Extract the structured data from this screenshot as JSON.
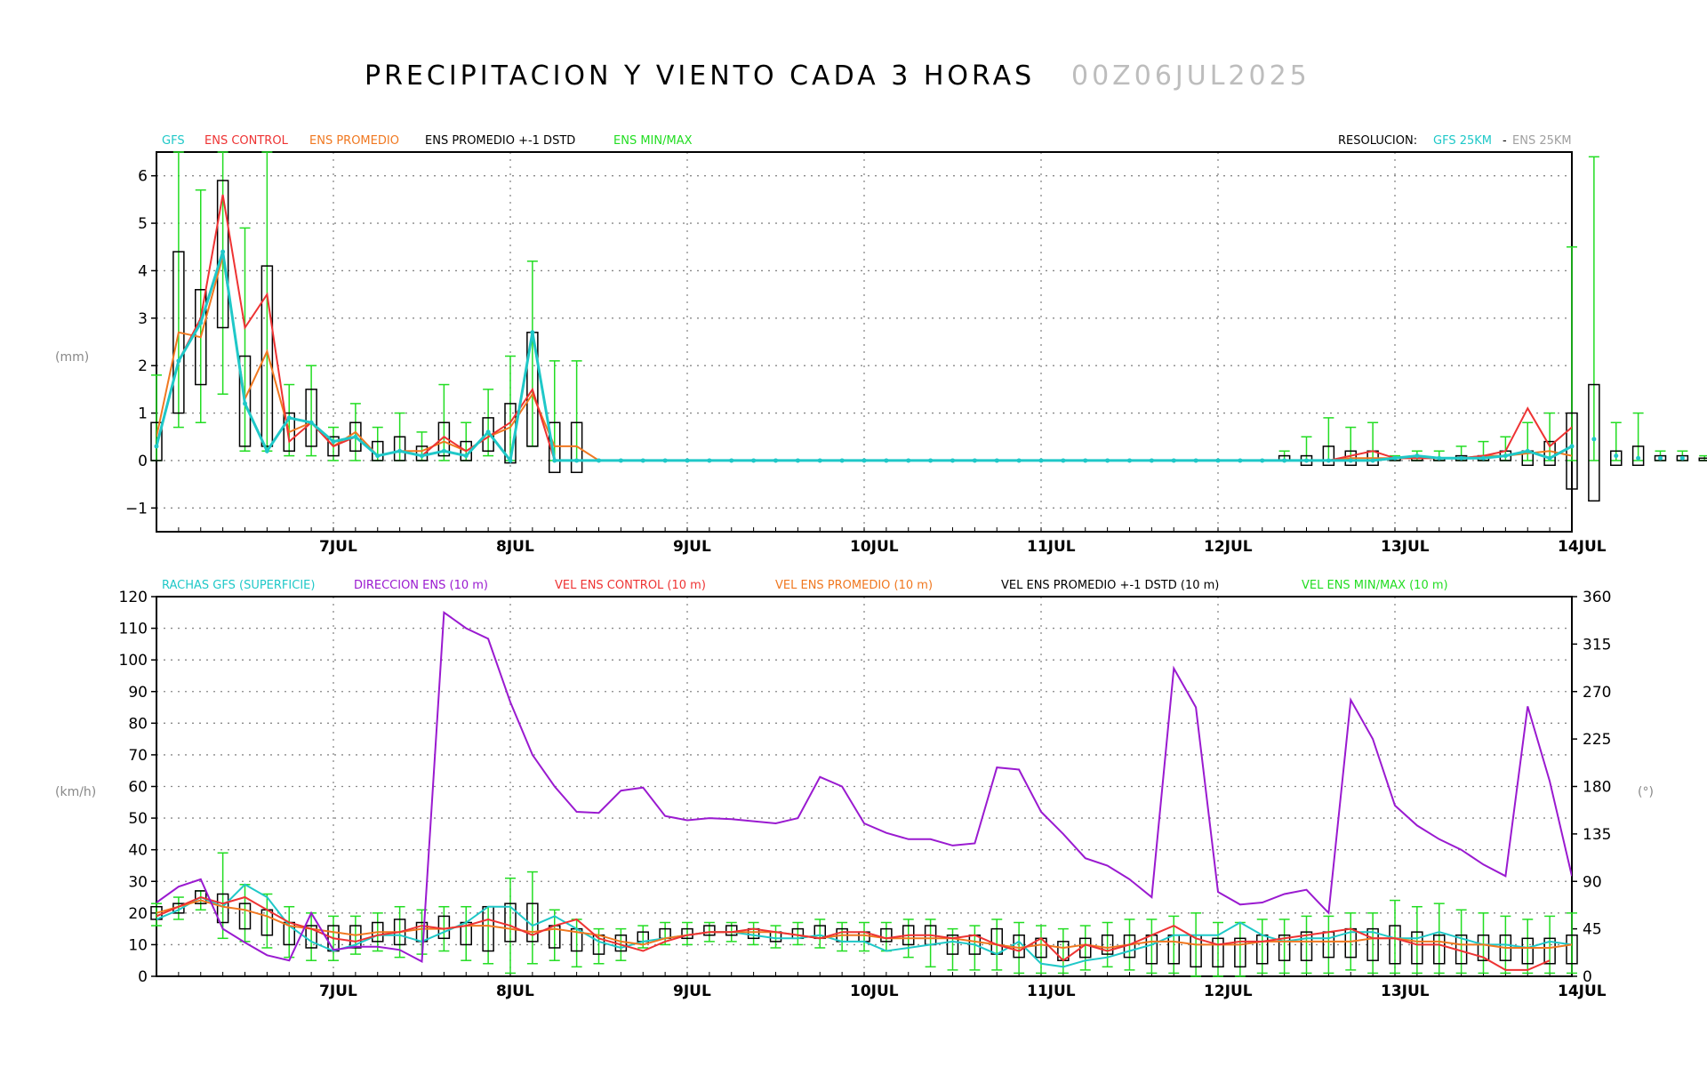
{
  "title": "PRECIPITACION Y VIENTO CADA 3 HORAS",
  "run": "00Z06JUL2025",
  "colors": {
    "gfs": "#1fc8c8",
    "control": "#ee3333",
    "mean": "#f07820",
    "box": "#000000",
    "minmax": "#22dd22",
    "dir": "#9a1ad0",
    "gray": "#a0a0a0"
  },
  "top_legend": {
    "gfs": "GFS",
    "control": "ENS CONTROL",
    "mean": "ENS PROMEDIO",
    "std": "ENS PROMEDIO +-1 DSTD",
    "minmax": "ENS MIN/MAX",
    "res_label": "RESOLUCION:",
    "res_gfs": "GFS 25KM",
    "res_sep": "-",
    "res_ens": "ENS 25KM"
  },
  "bottom_legend": {
    "gust": "RACHAS GFS (SUPERFICIE)",
    "dir": "DIRECCION ENS (10 m)",
    "control": "VEL ENS CONTROL (10 m)",
    "mean": "VEL ENS PROMEDIO (10 m)",
    "std": "VEL ENS PROMEDIO +-1 DSTD (10 m)",
    "minmax": "VEL ENS MIN/MAX (10 m)"
  },
  "chart_data": [
    {
      "type": "line",
      "panel": "precipitation",
      "ylabel": "(mm)",
      "ylim": [
        -1.5,
        6.5
      ],
      "yticks": [
        -1,
        0,
        1,
        2,
        3,
        4,
        5,
        6
      ],
      "ytick_labels": [
        "−1",
        "0",
        "1",
        "2",
        "3",
        "4",
        "5",
        "6"
      ],
      "xlim_days": [
        6.0,
        14.0
      ],
      "x_ticks": [
        7,
        8,
        9,
        10,
        11,
        12,
        13,
        14
      ],
      "x_tick_labels": [
        "7JUL",
        "8JUL",
        "9JUL",
        "10JUL",
        "11JUL",
        "12JUL",
        "13JUL",
        "14JUL"
      ],
      "x_step_hours": 3,
      "grid": true,
      "gfs": [
        0.3,
        2.1,
        2.9,
        4.4,
        1.2,
        0.2,
        0.9,
        0.8,
        0.4,
        0.5,
        0.1,
        0.2,
        0.1,
        0.2,
        0.1,
        0.6,
        0.0,
        2.7,
        0.0,
        0.0,
        0,
        0,
        0,
        0,
        0,
        0,
        0,
        0,
        0,
        0,
        0,
        0,
        0,
        0,
        0,
        0,
        0,
        0,
        0,
        0,
        0,
        0,
        0,
        0,
        0,
        0,
        0,
        0,
        0,
        0,
        0,
        0,
        0,
        0,
        0,
        0,
        0.05,
        0.1,
        0.05,
        0.05,
        0.05,
        0.1,
        0.2,
        0.05,
        0.3,
        0.45,
        0.1,
        0.05,
        0.05,
        0.05
      ],
      "control": [
        0.3,
        2.1,
        3.0,
        5.6,
        2.8,
        3.5,
        0.4,
        0.8,
        0.3,
        0.5,
        0.1,
        0.2,
        0.1,
        0.5,
        0.2,
        0.5,
        0.8,
        1.5,
        0.0,
        0.0,
        0,
        0,
        0,
        0,
        0,
        0,
        0,
        0,
        0,
        0,
        0,
        0,
        0,
        0,
        0,
        0,
        0,
        0,
        0,
        0,
        0,
        0,
        0,
        0,
        0,
        0,
        0,
        0,
        0,
        0,
        0,
        0,
        0,
        0,
        0.1,
        0.2,
        0.05,
        0.05,
        0.05,
        0.05,
        0.1,
        0.2,
        1.1,
        0.3,
        0.7,
        0.2,
        0.05,
        0.3,
        0.4,
        0.05,
        0.05,
        0.0,
        0.0
      ],
      "mean": [
        0.5,
        2.7,
        2.6,
        4.3,
        1.3,
        2.3,
        0.6,
        0.8,
        0.3,
        0.6,
        0.1,
        0.2,
        0.2,
        0.4,
        0.2,
        0.5,
        0.7,
        1.4,
        0.3,
        0.3,
        0,
        0,
        0,
        0,
        0,
        0,
        0,
        0,
        0,
        0,
        0,
        0,
        0,
        0,
        0,
        0,
        0,
        0,
        0,
        0,
        0,
        0,
        0,
        0,
        0,
        0,
        0,
        0,
        0,
        0,
        0,
        0,
        0,
        0,
        0.05,
        0.05,
        0.05,
        0.05,
        0.05,
        0.05,
        0.1,
        0.1,
        0.15,
        0.2,
        0.1,
        0.2,
        0.35,
        0.25,
        0.3,
        0.1,
        0.1,
        0.05,
        0.05
      ],
      "std_boxes": [
        [
          0.0,
          0.8
        ],
        [
          1.0,
          4.4
        ],
        [
          1.6,
          3.6
        ],
        [
          2.8,
          5.9
        ],
        [
          0.3,
          2.2
        ],
        [
          0.3,
          4.1
        ],
        [
          0.2,
          1.0
        ],
        [
          0.3,
          1.5
        ],
        [
          0.1,
          0.5
        ],
        [
          0.2,
          0.8
        ],
        [
          0.0,
          0.4
        ],
        [
          0.0,
          0.5
        ],
        [
          0.0,
          0.3
        ],
        [
          0.1,
          0.8
        ],
        [
          0.0,
          0.4
        ],
        [
          0.2,
          0.9
        ],
        [
          -0.05,
          1.2
        ],
        [
          0.3,
          2.7
        ],
        [
          -0.25,
          0.8
        ],
        [
          -0.25,
          0.8
        ]
      ],
      "std_boxes_late": [
        [
          0.0,
          0.1
        ],
        [
          -0.1,
          0.1
        ],
        [
          -0.1,
          0.3
        ],
        [
          -0.1,
          0.2
        ],
        [
          -0.1,
          0.2
        ],
        [
          0.0,
          0.05
        ],
        [
          0.0,
          0.05
        ],
        [
          0.0,
          0.05
        ],
        [
          0.0,
          0.1
        ],
        [
          0.0,
          0.1
        ],
        [
          0.0,
          0.2
        ],
        [
          -0.1,
          0.2
        ],
        [
          -0.1,
          0.4
        ],
        [
          -0.6,
          1.0
        ],
        [
          -0.85,
          1.6
        ],
        [
          -0.1,
          0.2
        ],
        [
          -0.1,
          0.3
        ],
        [
          0.0,
          0.1
        ],
        [
          0.0,
          0.1
        ],
        [
          0.0,
          0.05
        ],
        [
          0.0,
          0.1
        ]
      ],
      "minmax_early": [
        [
          0.0,
          1.8
        ],
        [
          0.7,
          6.5
        ],
        [
          0.8,
          5.7
        ],
        [
          1.4,
          6.5
        ],
        [
          0.2,
          4.9
        ],
        [
          0.2,
          6.5
        ],
        [
          0.1,
          1.6
        ],
        [
          0.1,
          2.0
        ],
        [
          0.0,
          0.7
        ],
        [
          0.0,
          1.2
        ],
        [
          0.0,
          0.7
        ],
        [
          0.0,
          1.0
        ],
        [
          0.0,
          0.6
        ],
        [
          0.0,
          1.6
        ],
        [
          0.0,
          0.8
        ],
        [
          0.1,
          1.5
        ],
        [
          0.0,
          2.2
        ],
        [
          0.3,
          4.2
        ],
        [
          0.0,
          2.1
        ],
        [
          0.0,
          2.1
        ]
      ],
      "minmax_late": [
        [
          0.0,
          0.2
        ],
        [
          0.0,
          0.5
        ],
        [
          0.0,
          0.9
        ],
        [
          0.0,
          0.7
        ],
        [
          0.0,
          0.8
        ],
        [
          0.0,
          0.1
        ],
        [
          0.0,
          0.2
        ],
        [
          0.0,
          0.2
        ],
        [
          0.0,
          0.3
        ],
        [
          0.0,
          0.4
        ],
        [
          0.0,
          0.5
        ],
        [
          0.0,
          0.8
        ],
        [
          0.0,
          1.0
        ],
        [
          0.0,
          4.5
        ],
        [
          0.0,
          6.4
        ],
        [
          0.0,
          0.8
        ],
        [
          0.0,
          1.0
        ],
        [
          0.0,
          0.2
        ],
        [
          0.0,
          0.2
        ],
        [
          0.0,
          0.1
        ],
        [
          0.0,
          0.1
        ]
      ]
    },
    {
      "type": "line",
      "panel": "wind",
      "ylabel": "(km/h)",
      "ylabel_right": "(°)",
      "ylim": [
        0,
        120
      ],
      "yticks": [
        0,
        10,
        20,
        30,
        40,
        50,
        60,
        70,
        80,
        90,
        100,
        110,
        120
      ],
      "ytick_labels": [
        "0",
        "10",
        "20",
        "30",
        "40",
        "50",
        "60",
        "70",
        "80",
        "90",
        "100",
        "110",
        "120"
      ],
      "y2lim": [
        0,
        360
      ],
      "y2ticks": [
        0,
        45,
        90,
        135,
        180,
        225,
        270,
        315,
        360
      ],
      "y2tick_labels": [
        "0",
        "45",
        "90",
        "135",
        "180",
        "225",
        "270",
        "315",
        "360"
      ],
      "xlim_days": [
        6.0,
        14.0
      ],
      "x_ticks": [
        7,
        8,
        9,
        10,
        11,
        12,
        13,
        14
      ],
      "x_tick_labels": [
        "7JUL",
        "8JUL",
        "9JUL",
        "10JUL",
        "11JUL",
        "12JUL",
        "13JUL",
        "14JUL"
      ],
      "x_step_hours": 3,
      "grid": true,
      "gust": [
        18,
        21,
        25,
        22,
        29,
        25,
        16,
        11,
        8,
        10,
        13,
        13,
        11,
        14,
        17,
        22,
        22,
        16,
        19,
        15,
        11,
        9,
        11,
        12,
        13,
        14,
        14,
        13,
        12,
        12,
        13,
        11,
        11,
        8,
        9,
        10,
        11,
        10,
        7,
        11,
        4,
        3,
        5,
        6,
        8,
        10,
        13,
        13,
        13,
        17,
        13,
        11,
        12,
        12,
        14,
        14,
        12,
        12,
        14,
        12,
        10,
        10,
        9,
        11,
        10,
        8,
        7,
        6,
        4,
        6,
        5,
        3
      ],
      "direction": [
        70,
        85,
        92,
        45,
        32,
        20,
        15,
        60,
        25,
        28,
        28,
        25,
        14,
        345,
        330,
        320,
        260,
        210,
        180,
        156,
        155,
        176,
        179,
        152,
        148,
        150,
        149,
        147,
        145,
        150,
        189,
        180,
        145,
        136,
        130,
        130,
        124,
        126,
        198,
        196,
        156,
        135,
        112,
        105,
        92,
        75,
        292,
        255,
        80,
        68,
        70,
        78,
        82,
        60,
        262,
        225,
        162,
        143,
        130,
        120,
        106,
        95,
        256,
        185,
        95
      ],
      "control": [
        19,
        22,
        25,
        23,
        25,
        21,
        17,
        15,
        12,
        11,
        13,
        14,
        16,
        15,
        16,
        18,
        16,
        13,
        16,
        18,
        12,
        10,
        8,
        11,
        13,
        14,
        14,
        15,
        14,
        13,
        12,
        14,
        14,
        12,
        13,
        13,
        12,
        13,
        10,
        8,
        12,
        5,
        10,
        8,
        10,
        13,
        16,
        12,
        10,
        11,
        11,
        12,
        13,
        14,
        15,
        12,
        12,
        10,
        10,
        8,
        6,
        2,
        2,
        5
      ],
      "mean": [
        20,
        22,
        24,
        22,
        21,
        19,
        16,
        15,
        14,
        13,
        14,
        14,
        15,
        15,
        16,
        16,
        15,
        14,
        15,
        14,
        13,
        11,
        10,
        12,
        13,
        14,
        14,
        14,
        14,
        13,
        12,
        13,
        13,
        12,
        12,
        12,
        12,
        11,
        10,
        9,
        10,
        9,
        10,
        9,
        10,
        11,
        11,
        10,
        10,
        10,
        11,
        11,
        11,
        11,
        11,
        12,
        12,
        11,
        11,
        10,
        10,
        9,
        9,
        9,
        10,
        10
      ],
      "std_boxes": [
        [
          18,
          22
        ],
        [
          20,
          23
        ],
        [
          23,
          27
        ],
        [
          17,
          26
        ],
        [
          15,
          23
        ],
        [
          13,
          21
        ],
        [
          10,
          17
        ],
        [
          9,
          16
        ],
        [
          8,
          16
        ],
        [
          9,
          16
        ],
        [
          11,
          17
        ],
        [
          10,
          18
        ],
        [
          11,
          17
        ],
        [
          12,
          19
        ],
        [
          10,
          17
        ],
        [
          8,
          22
        ],
        [
          11,
          23
        ],
        [
          11,
          23
        ],
        [
          9,
          16
        ],
        [
          8,
          15
        ],
        [
          7,
          13
        ],
        [
          8,
          13
        ],
        [
          11,
          14
        ],
        [
          12,
          15
        ],
        [
          12,
          15
        ],
        [
          13,
          16
        ],
        [
          13,
          16
        ],
        [
          12,
          15
        ],
        [
          11,
          14
        ],
        [
          12,
          15
        ],
        [
          12,
          16
        ],
        [
          11,
          15
        ],
        [
          11,
          14
        ],
        [
          11,
          15
        ],
        [
          10,
          16
        ],
        [
          10,
          16
        ],
        [
          7,
          13
        ],
        [
          7,
          13
        ],
        [
          7,
          15
        ],
        [
          6,
          13
        ],
        [
          6,
          12
        ],
        [
          5,
          11
        ],
        [
          6,
          12
        ],
        [
          7,
          13
        ],
        [
          6,
          13
        ],
        [
          4,
          13
        ],
        [
          4,
          13
        ],
        [
          3,
          13
        ],
        [
          3,
          12
        ],
        [
          3,
          12
        ],
        [
          4,
          13
        ],
        [
          5,
          13
        ],
        [
          5,
          14
        ],
        [
          6,
          14
        ],
        [
          6,
          15
        ],
        [
          5,
          15
        ],
        [
          4,
          16
        ],
        [
          4,
          14
        ],
        [
          4,
          13
        ],
        [
          4,
          13
        ],
        [
          5,
          13
        ],
        [
          5,
          13
        ],
        [
          4,
          12
        ],
        [
          4,
          12
        ],
        [
          4,
          13
        ]
      ],
      "minmax": [
        [
          16,
          23
        ],
        [
          18,
          25
        ],
        [
          21,
          27
        ],
        [
          12,
          39
        ],
        [
          11,
          29
        ],
        [
          9,
          26
        ],
        [
          6,
          22
        ],
        [
          5,
          20
        ],
        [
          5,
          19
        ],
        [
          7,
          19
        ],
        [
          8,
          20
        ],
        [
          6,
          22
        ],
        [
          7,
          21
        ],
        [
          8,
          22
        ],
        [
          5,
          22
        ],
        [
          4,
          22
        ],
        [
          1,
          31
        ],
        [
          4,
          33
        ],
        [
          5,
          21
        ],
        [
          3,
          18
        ],
        [
          4,
          15
        ],
        [
          5,
          15
        ],
        [
          9,
          16
        ],
        [
          10,
          17
        ],
        [
          10,
          17
        ],
        [
          11,
          17
        ],
        [
          11,
          17
        ],
        [
          10,
          17
        ],
        [
          9,
          16
        ],
        [
          10,
          17
        ],
        [
          9,
          18
        ],
        [
          8,
          17
        ],
        [
          8,
          17
        ],
        [
          8,
          17
        ],
        [
          6,
          18
        ],
        [
          3,
          18
        ],
        [
          2,
          15
        ],
        [
          2,
          16
        ],
        [
          2,
          18
        ],
        [
          1,
          17
        ],
        [
          1,
          16
        ],
        [
          1,
          15
        ],
        [
          2,
          16
        ],
        [
          3,
          17
        ],
        [
          2,
          18
        ],
        [
          1,
          18
        ],
        [
          1,
          19
        ],
        [
          0,
          20
        ],
        [
          0,
          17
        ],
        [
          0,
          17
        ],
        [
          1,
          18
        ],
        [
          1,
          18
        ],
        [
          1,
          19
        ],
        [
          1,
          19
        ],
        [
          2,
          20
        ],
        [
          1,
          20
        ],
        [
          1,
          24
        ],
        [
          1,
          22
        ],
        [
          1,
          23
        ],
        [
          1,
          21
        ],
        [
          1,
          20
        ],
        [
          1,
          19
        ],
        [
          1,
          18
        ],
        [
          1,
          19
        ],
        [
          1,
          20
        ]
      ]
    }
  ]
}
